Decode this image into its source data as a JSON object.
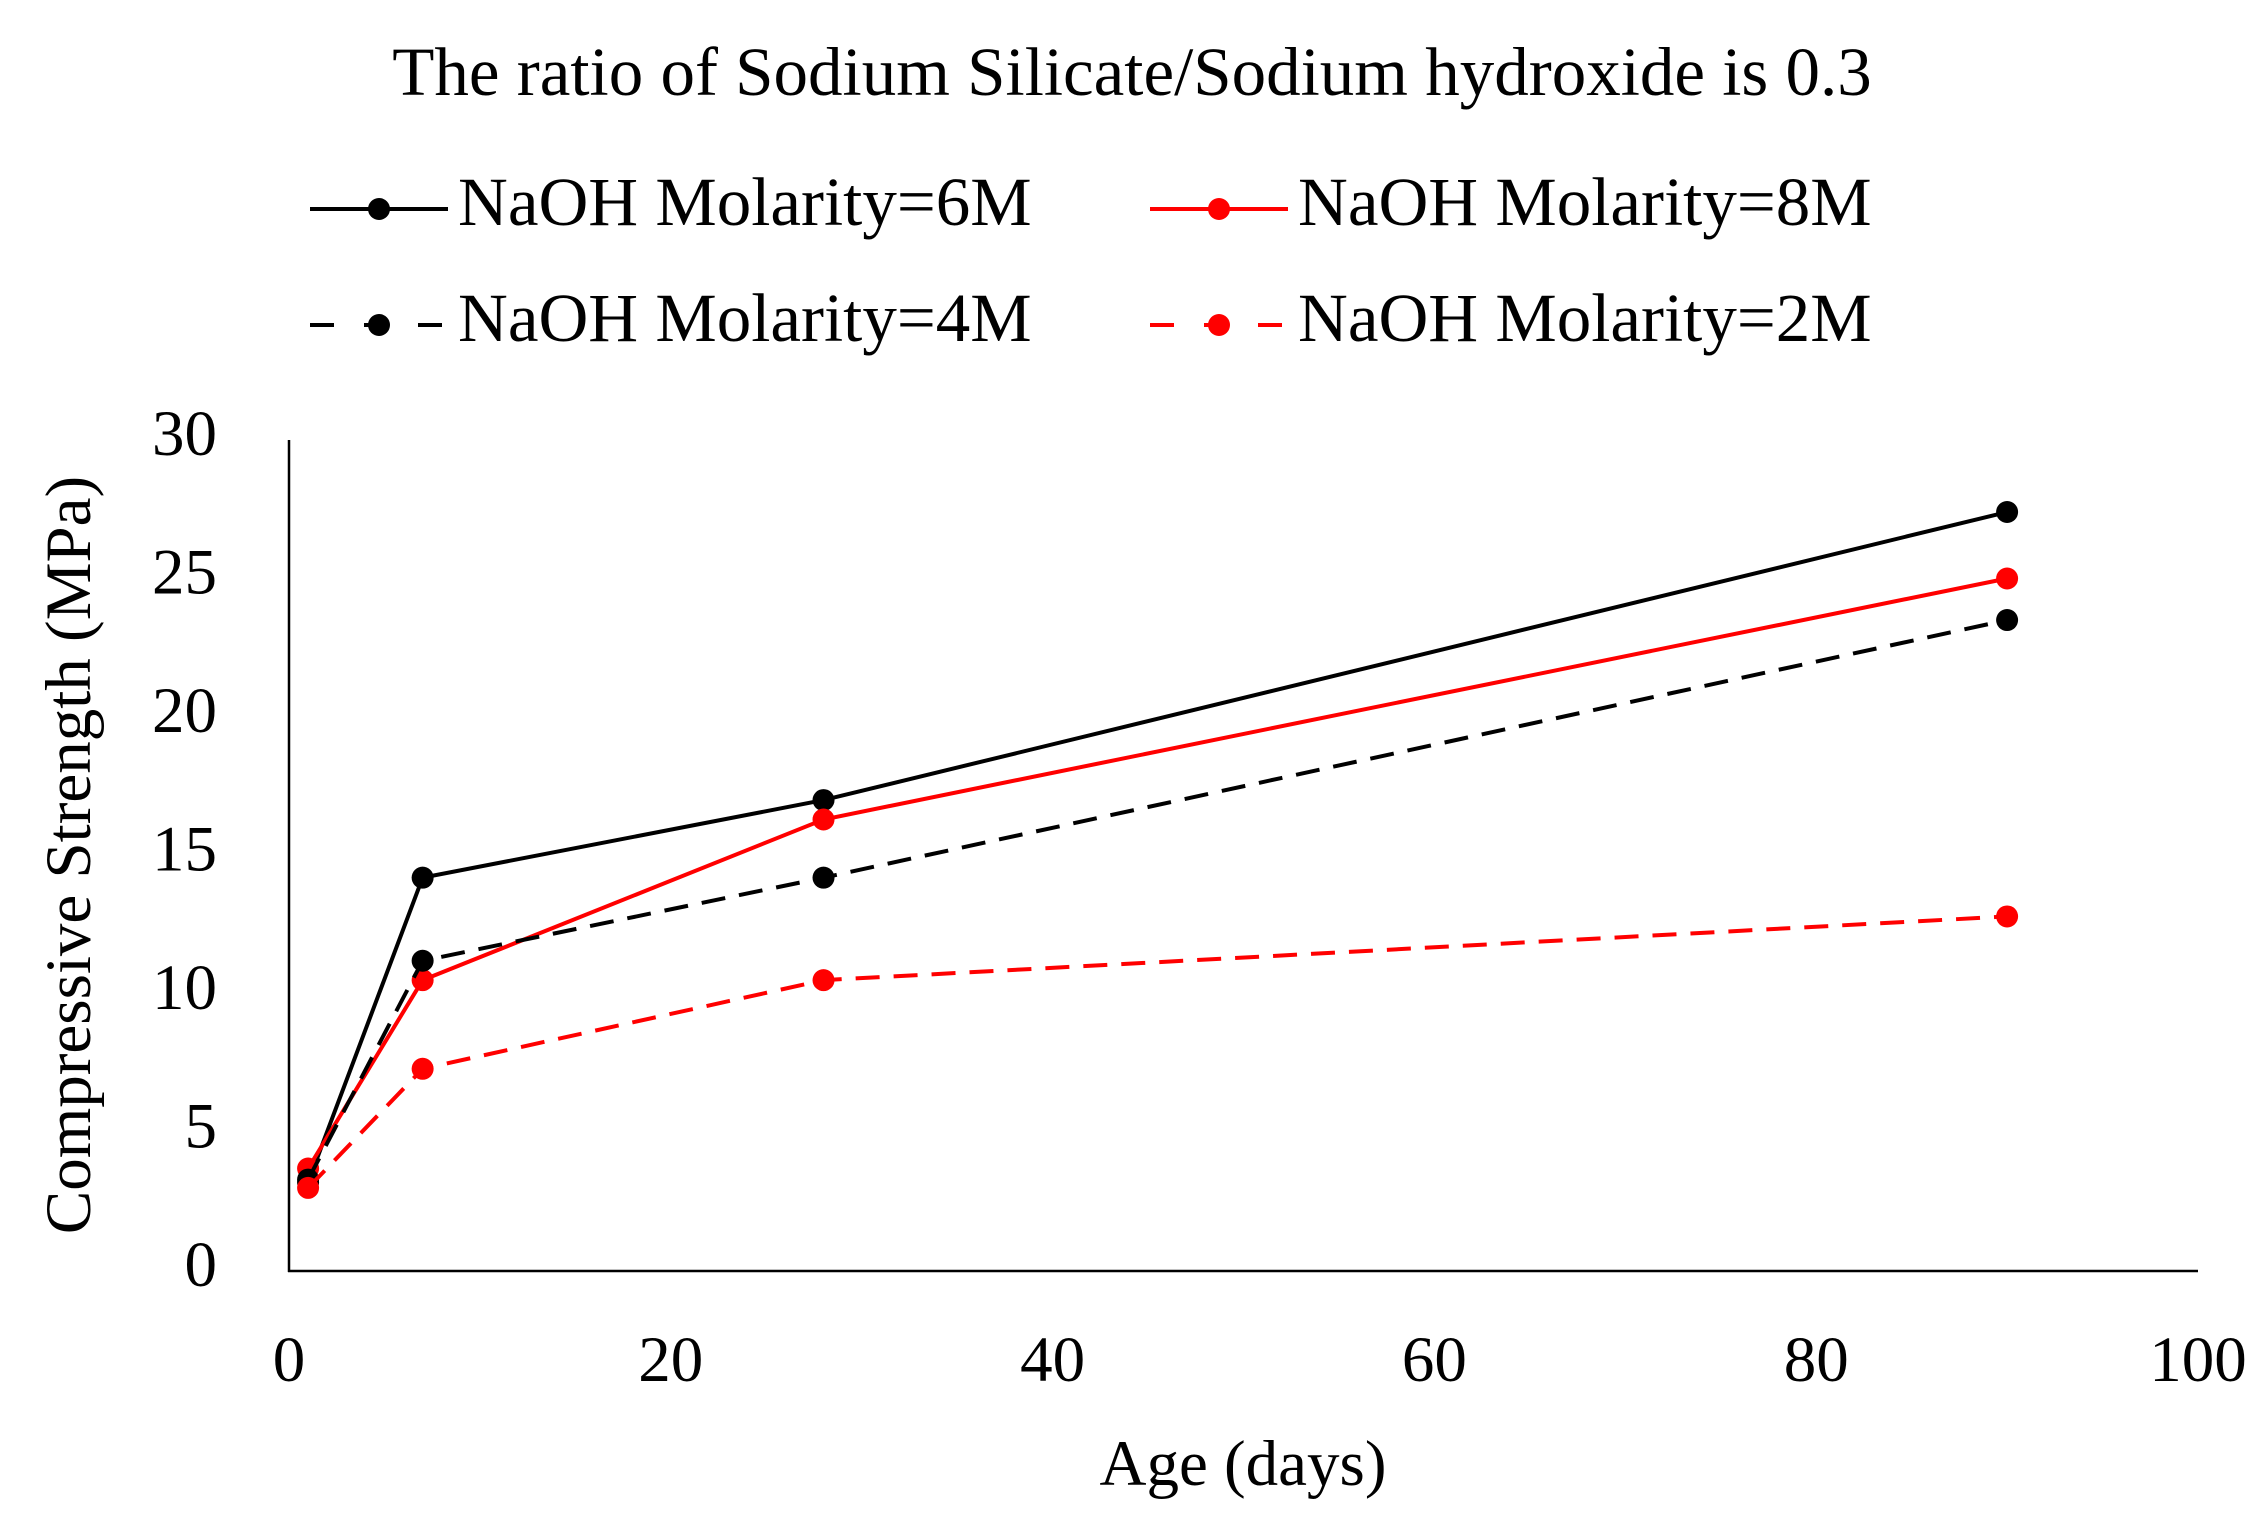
{
  "chart_data": {
    "type": "line",
    "title": "The ratio of Sodium Silicate/Sodium hydroxide is 0.3",
    "x_label": "Age (days)",
    "y_label": "Compressive Strength (MPa)",
    "x": [
      1,
      7,
      28,
      90
    ],
    "series": [
      {
        "name": "NaOH Molarity=6M",
        "color": "#000000",
        "dashed": false,
        "values": [
          3.2,
          14.2,
          17,
          27.4
        ]
      },
      {
        "name": "NaOH Molarity=8M",
        "color": "#ff0000",
        "dashed": false,
        "values": [
          3.7,
          10.5,
          16.3,
          25
        ]
      },
      {
        "name": "NaOH Molarity=4M",
        "color": "#000000",
        "dashed": true,
        "values": [
          3.3,
          11.2,
          14.2,
          23.5
        ]
      },
      {
        "name": "NaOH Molarity=2M",
        "color": "#ff0000",
        "dashed": true,
        "values": [
          3,
          7.3,
          10.5,
          12.8
        ]
      }
    ],
    "xlim": [
      0,
      100
    ],
    "xticks": [
      0,
      20,
      40,
      60,
      80,
      100
    ],
    "ylim": [
      0,
      30
    ],
    "yticks": [
      0,
      5,
      10,
      15,
      20,
      25,
      30
    ],
    "grid": false
  }
}
